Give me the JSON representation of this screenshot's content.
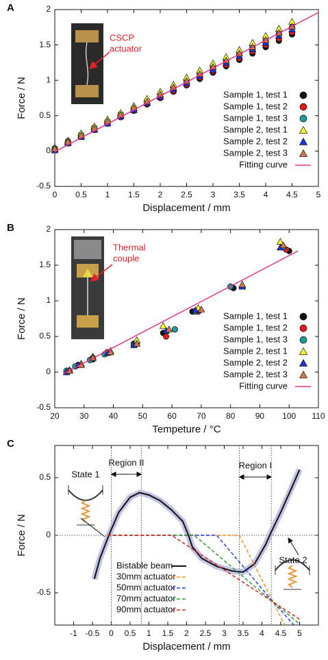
{
  "chart_data": [
    {
      "type": "scatter",
      "panel": "A",
      "xlabel": "Displacement / mm",
      "ylabel": "Force / N",
      "annotation": [
        "CSCP",
        "actuator"
      ],
      "xlim": [
        0,
        5
      ],
      "ylim": [
        -0.5,
        2
      ],
      "xticks": [
        0,
        0.5,
        1,
        1.5,
        2,
        2.5,
        3,
        3.5,
        4,
        4.5,
        5
      ],
      "yticks": [
        -0.5,
        0,
        0.5,
        1,
        1.5,
        2
      ],
      "legend": "lower right",
      "series": [
        {
          "name": "Sample 1, test 1",
          "marker": "circle",
          "color": "#111111",
          "x": [
            0,
            0.25,
            0.5,
            0.75,
            1,
            1.25,
            1.5,
            1.75,
            2,
            2.25,
            2.5,
            2.75,
            3,
            3.25,
            3.5,
            3.75,
            4,
            4.25,
            4.5
          ],
          "values": [
            0.03,
            0.12,
            0.21,
            0.3,
            0.39,
            0.48,
            0.57,
            0.66,
            0.75,
            0.84,
            0.93,
            1.02,
            1.11,
            1.2,
            1.29,
            1.38,
            1.47,
            1.56,
            1.65
          ]
        },
        {
          "name": "Sample 1, test 2",
          "marker": "circle",
          "color": "#e41a1c",
          "x": [
            0,
            0.25,
            0.5,
            0.75,
            1,
            1.25,
            1.5,
            1.75,
            2,
            2.25,
            2.5,
            2.75,
            3,
            3.25,
            3.5,
            3.75,
            4,
            4.25,
            4.5
          ],
          "values": [
            0.02,
            0.11,
            0.21,
            0.3,
            0.39,
            0.48,
            0.58,
            0.67,
            0.76,
            0.85,
            0.94,
            1.04,
            1.13,
            1.22,
            1.31,
            1.41,
            1.5,
            1.59,
            1.68
          ]
        },
        {
          "name": "Sample 1, test 3",
          "marker": "circle",
          "color": "#1f9a9a",
          "x": [
            0,
            0.25,
            0.5,
            0.75,
            1,
            1.25,
            1.5,
            1.75,
            2,
            2.25,
            2.5,
            2.75,
            3,
            3.25,
            3.5,
            3.75,
            4,
            4.25,
            4.5
          ],
          "values": [
            0.04,
            0.14,
            0.23,
            0.33,
            0.42,
            0.52,
            0.61,
            0.71,
            0.8,
            0.9,
            0.99,
            1.09,
            1.18,
            1.28,
            1.37,
            1.47,
            1.56,
            1.66,
            1.75
          ]
        },
        {
          "name": "Sample 2, test 1",
          "marker": "triangle",
          "color": "#ffff33",
          "x": [
            0,
            0.25,
            0.5,
            0.75,
            1,
            1.25,
            1.5,
            1.75,
            2,
            2.25,
            2.5,
            2.75,
            3,
            3.25,
            3.5,
            3.75,
            4,
            4.25,
            4.5
          ],
          "values": [
            0.05,
            0.15,
            0.25,
            0.35,
            0.45,
            0.54,
            0.64,
            0.74,
            0.84,
            0.94,
            1.04,
            1.14,
            1.24,
            1.33,
            1.43,
            1.53,
            1.63,
            1.73,
            1.83
          ]
        },
        {
          "name": "Sample 2, test 2",
          "marker": "triangle",
          "color": "#2233dd",
          "x": [
            0,
            0.25,
            0.5,
            0.75,
            1,
            1.25,
            1.5,
            1.75,
            2,
            2.25,
            2.5,
            2.75,
            3,
            3.25,
            3.5,
            3.75,
            4,
            4.25,
            4.5
          ],
          "values": [
            0.01,
            0.11,
            0.2,
            0.3,
            0.39,
            0.49,
            0.58,
            0.68,
            0.77,
            0.87,
            0.96,
            1.06,
            1.15,
            1.25,
            1.34,
            1.44,
            1.53,
            1.63,
            1.72
          ]
        },
        {
          "name": "Sample 2, test 3",
          "marker": "triangle",
          "color": "#d2784a",
          "x": [
            0,
            0.25,
            0.5,
            0.75,
            1,
            1.25,
            1.5,
            1.75,
            2,
            2.25,
            2.5,
            2.75,
            3,
            3.25,
            3.5,
            3.75,
            4,
            4.25,
            4.5
          ],
          "values": [
            0.03,
            0.13,
            0.22,
            0.32,
            0.42,
            0.51,
            0.61,
            0.7,
            0.8,
            0.9,
            0.99,
            1.09,
            1.19,
            1.28,
            1.38,
            1.47,
            1.57,
            1.67,
            1.76
          ]
        },
        {
          "name": "Fitting curve",
          "marker": "line",
          "color": "#e8308a",
          "x": [
            0,
            5
          ],
          "values": [
            -0.01,
            1.96
          ]
        }
      ]
    },
    {
      "type": "scatter",
      "panel": "B",
      "xlabel": "Tempeture / °C",
      "ylabel": "Force / N",
      "annotation": [
        "Thermal",
        "couple"
      ],
      "xlim": [
        20,
        110
      ],
      "ylim": [
        -0.5,
        2
      ],
      "xticks": [
        20,
        30,
        40,
        50,
        60,
        70,
        80,
        90,
        100,
        110
      ],
      "yticks": [
        -0.5,
        0,
        0.5,
        1,
        1.5,
        2
      ],
      "legend": "lower right",
      "series": [
        {
          "name": "Sample 1, test 1",
          "marker": "circle",
          "color": "#111111",
          "x": [
            24,
            28,
            33,
            38,
            47,
            57,
            67,
            81,
            100
          ],
          "values": [
            0,
            0.1,
            0.18,
            0.27,
            0.4,
            0.55,
            0.85,
            1.18,
            1.7
          ]
        },
        {
          "name": "Sample 1, test 2",
          "marker": "circle",
          "color": "#e41a1c",
          "x": [
            25,
            28,
            33,
            38,
            48,
            58,
            69,
            80,
            99
          ],
          "values": [
            0.02,
            0.1,
            0.2,
            0.28,
            0.4,
            0.5,
            0.85,
            1.2,
            1.72
          ]
        },
        {
          "name": "Sample 1, test 3",
          "marker": "circle",
          "color": "#1f9a9a",
          "x": [
            24,
            27,
            32,
            37,
            47,
            61,
            68,
            80,
            98
          ],
          "values": [
            0.02,
            0.08,
            0.17,
            0.25,
            0.38,
            0.6,
            0.85,
            1.2,
            1.75
          ]
        },
        {
          "name": "Sample 2, test 1",
          "marker": "triangle",
          "color": "#ffff33",
          "x": [
            25,
            29,
            33,
            39,
            48,
            57,
            69,
            84,
            97
          ],
          "values": [
            0.03,
            0.12,
            0.22,
            0.3,
            0.45,
            0.65,
            0.9,
            1.22,
            1.83
          ]
        },
        {
          "name": "Sample 2, test 2",
          "marker": "triangle",
          "color": "#2233dd",
          "x": [
            24,
            28,
            33,
            38,
            47,
            58,
            68,
            84,
            97
          ],
          "values": [
            0,
            0.1,
            0.2,
            0.27,
            0.38,
            0.58,
            0.87,
            1.2,
            1.75
          ]
        },
        {
          "name": "Sample 2, test 3",
          "marker": "triangle",
          "color": "#d2784a",
          "x": [
            25,
            29,
            33,
            39,
            48,
            59,
            70,
            84,
            98
          ],
          "values": [
            0.02,
            0.1,
            0.2,
            0.28,
            0.4,
            0.6,
            0.88,
            1.23,
            1.78
          ]
        },
        {
          "name": "Fitting curve",
          "marker": "line",
          "color": "#e8308a",
          "x": [
            23,
            103
          ],
          "values": [
            -0.02,
            1.7
          ]
        }
      ]
    },
    {
      "type": "line",
      "panel": "C",
      "xlabel": "Displacement / mm",
      "ylabel": "Force / N",
      "states": [
        "State 1",
        "State 2"
      ],
      "regions": [
        {
          "label": "Region II",
          "x": [
            0,
            0.8
          ]
        },
        {
          "label": "Region I",
          "x": [
            3.4,
            4.25
          ]
        }
      ],
      "xlim": [
        -1.5,
        5.5
      ],
      "ylim": [
        -0.78,
        0.78
      ],
      "xticks": [
        -1,
        -0.5,
        0,
        0.5,
        1,
        1.5,
        2,
        2.5,
        3,
        3.5,
        4,
        4.5,
        5
      ],
      "yticks": [
        -0.5,
        0,
        0.5
      ],
      "legend": "lower center",
      "series": [
        {
          "name": "Bistable beam",
          "marker": "line",
          "color": "#111111",
          "band_color": "#b4b4e0",
          "x": [
            -0.45,
            -0.3,
            -0.1,
            0,
            0.2,
            0.5,
            0.75,
            1,
            1.3,
            1.6,
            1.9,
            2.05,
            2.15,
            2.4,
            2.8,
            3.2,
            3.5,
            3.8,
            4.1,
            4.25,
            4.5,
            4.8,
            5
          ],
          "values": [
            -0.38,
            -0.2,
            -0.03,
            0.05,
            0.2,
            0.33,
            0.37,
            0.35,
            0.3,
            0.22,
            0.12,
            0,
            -0.1,
            -0.2,
            -0.27,
            -0.31,
            -0.32,
            -0.25,
            -0.08,
            0.03,
            0.2,
            0.42,
            0.57
          ]
        },
        {
          "name": "30mm actuator",
          "marker": "line",
          "dash": true,
          "color": "#ff8c1a",
          "x": [
            -0.1,
            3.4,
            4.3,
            4.6
          ],
          "values": [
            0,
            0,
            -0.58,
            -0.78
          ]
        },
        {
          "name": "50mm actuator",
          "marker": "line",
          "dash": true,
          "color": "#1f3fff",
          "x": [
            -0.1,
            2.8,
            4.3,
            4.85
          ],
          "values": [
            0,
            0,
            -0.58,
            -0.78
          ]
        },
        {
          "name": "70mm actuator",
          "marker": "line",
          "dash": true,
          "color": "#2ca02c",
          "x": [
            -0.1,
            2.2,
            4.3,
            5
          ],
          "values": [
            0,
            0,
            -0.58,
            -0.77
          ]
        },
        {
          "name": "90mm actuator",
          "marker": "line",
          "dash": true,
          "color": "#e0201b",
          "x": [
            -0.1,
            1.6,
            4.3,
            5
          ],
          "values": [
            0,
            0,
            -0.58,
            -0.73
          ]
        }
      ]
    }
  ]
}
